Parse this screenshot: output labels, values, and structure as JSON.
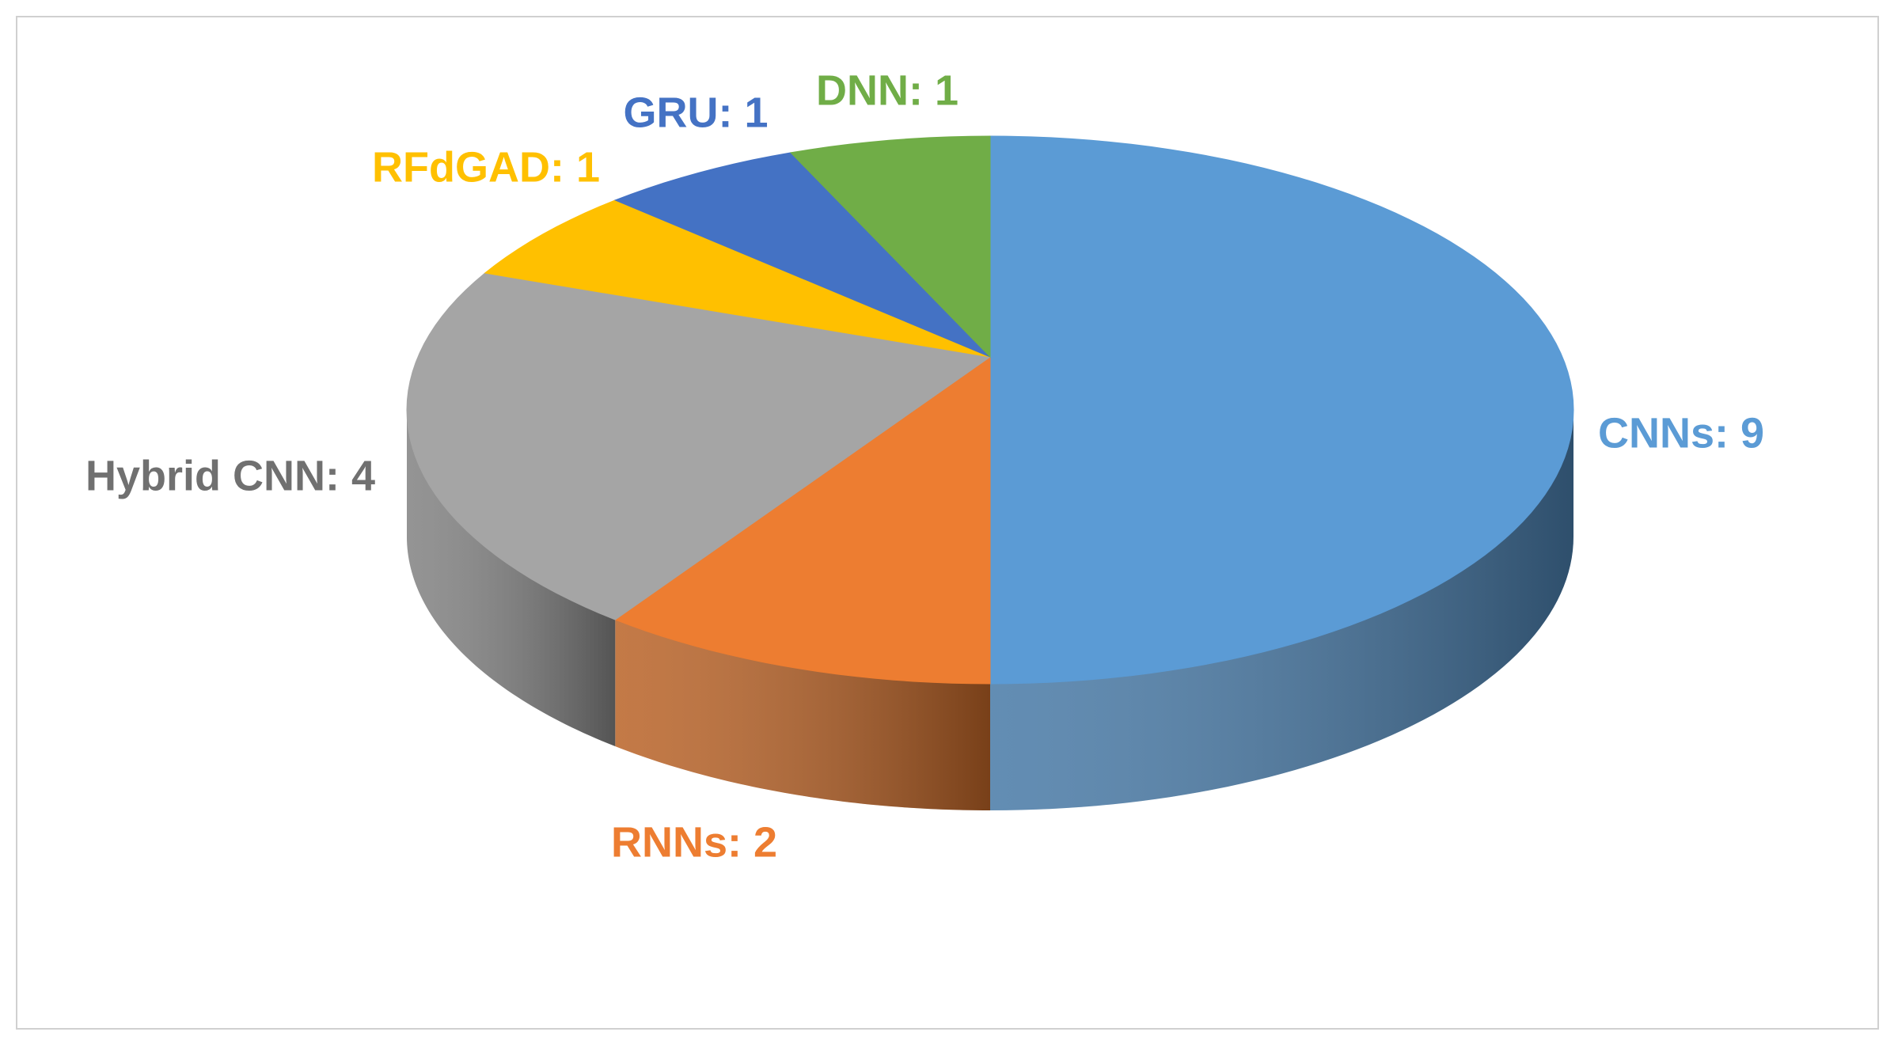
{
  "chart_data": {
    "type": "pie3d",
    "value_labels": [
      "CNNs: 9",
      "RNNs: 2",
      "Hybrid CNN: 4",
      "RFdGAD: 1",
      "GRU: 1",
      "DNN: 1"
    ],
    "values": [
      9,
      2,
      4,
      1,
      1,
      1
    ],
    "colors": [
      "#5b9bd5",
      "#ed7d31",
      "#a5a5a5",
      "#ffc000",
      "#4472c4",
      "#70ad47"
    ],
    "label_colors": [
      "#5b9bd5",
      "#ed7d31",
      "#707070",
      "#ffc000",
      "#4472c4",
      "#70ad47"
    ]
  }
}
